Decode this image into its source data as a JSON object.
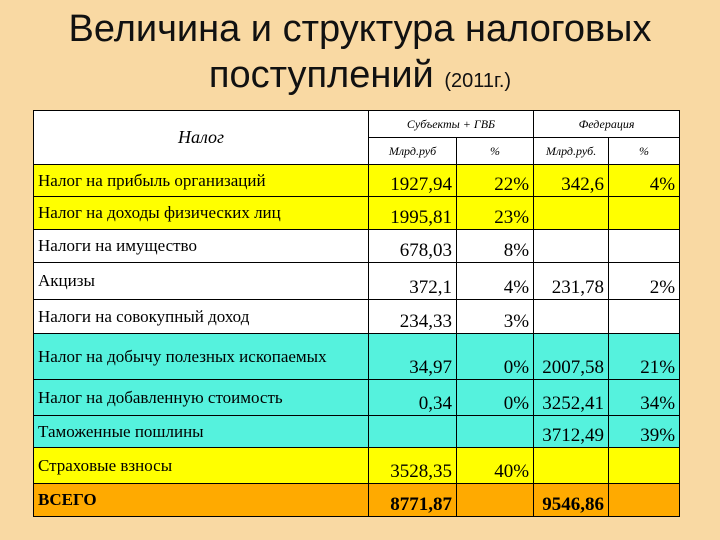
{
  "title": {
    "line1": "Величина и структура налоговых",
    "line2": "поступлений",
    "year": "(2011г.)"
  },
  "table": {
    "headers": {
      "tax": "Налог",
      "group_subjects": "Субъекты + ГВБ",
      "group_federation": "Федерация",
      "col_bn_subjects": "Млрд.руб",
      "col_pct_subjects": "%",
      "col_bn_federation": "Млрд.руб.",
      "col_pct_federation": "%"
    },
    "rows": [
      {
        "name": "Налог на прибыль организаций",
        "sub_bn": "1927,94",
        "sub_pct": "22%",
        "fed_bn": "342,6",
        "fed_pct": "4%"
      },
      {
        "name": "Налог на доходы физических лиц",
        "sub_bn": "1995,81",
        "sub_pct": "23%",
        "fed_bn": "",
        "fed_pct": ""
      },
      {
        "name": "Налоги на имущество",
        "sub_bn": "678,03",
        "sub_pct": "8%",
        "fed_bn": "",
        "fed_pct": ""
      },
      {
        "name": "Акцизы",
        "sub_bn": "372,1",
        "sub_pct": "4%",
        "fed_bn": "231,78",
        "fed_pct": "2%"
      },
      {
        "name": "Налоги на совокупный доход",
        "sub_bn": "234,33",
        "sub_pct": "3%",
        "fed_bn": "",
        "fed_pct": ""
      },
      {
        "name": "Налог на добычу полезных ископаемых",
        "sub_bn": "34,97",
        "sub_pct": "0%",
        "fed_bn": "2007,58",
        "fed_pct": "21%"
      },
      {
        "name": "Налог на добавленную стоимость",
        "sub_bn": "0,34",
        "sub_pct": "0%",
        "fed_bn": "3252,41",
        "fed_pct": "34%"
      },
      {
        "name": "Таможенные пошлины",
        "sub_bn": "",
        "sub_pct": "",
        "fed_bn": "3712,49",
        "fed_pct": "39%"
      },
      {
        "name": "Страховые взносы",
        "sub_bn": "3528,35",
        "sub_pct": "40%",
        "fed_bn": "",
        "fed_pct": ""
      },
      {
        "name": "ВСЕГО",
        "sub_bn": "8771,87",
        "sub_pct": "",
        "fed_bn": "9546,86",
        "fed_pct": ""
      }
    ]
  },
  "colors": {
    "background": "#f9d9a3",
    "yellow": "#ffff00",
    "cyan": "#55f2dd",
    "orange": "#ffaa00",
    "white": "#ffffff"
  }
}
